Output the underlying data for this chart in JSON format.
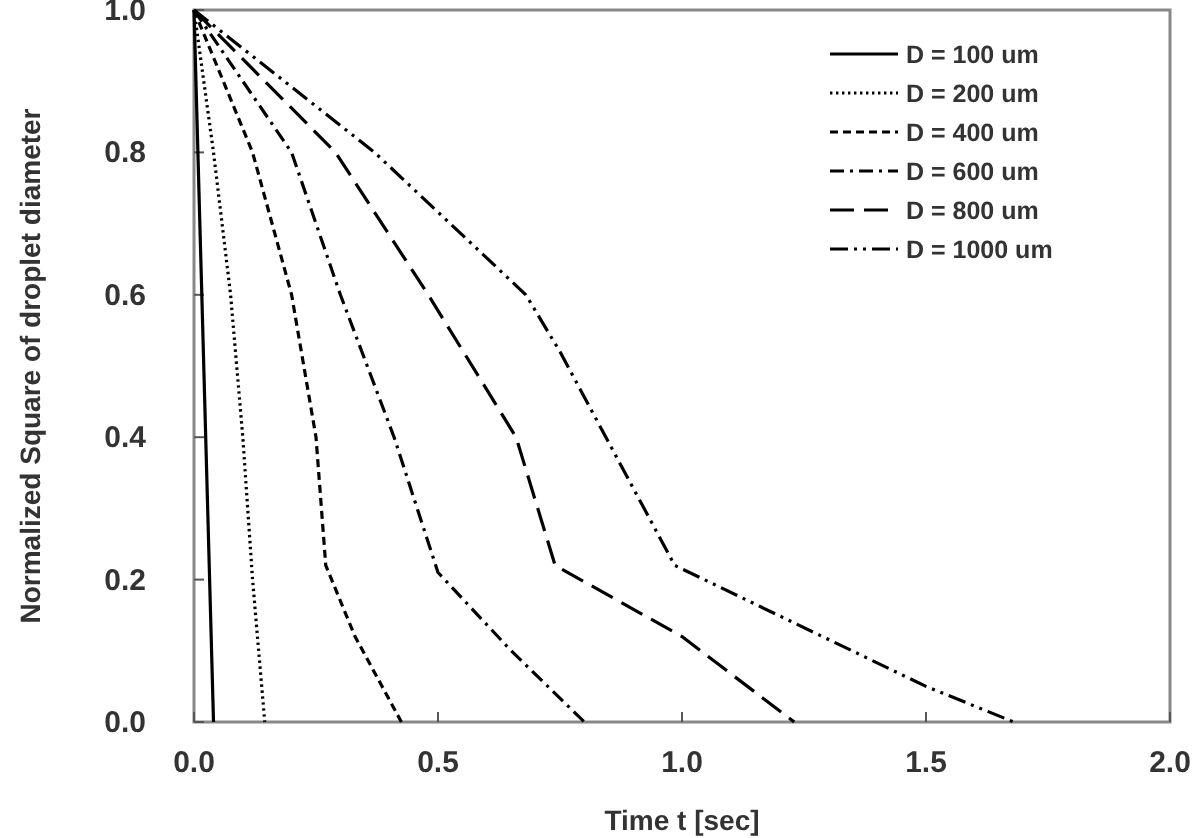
{
  "chart_data": {
    "type": "line",
    "xlabel": "Time t [sec]",
    "ylabel": "Normalized Square of droplet diameter",
    "xlim": [
      0,
      2
    ],
    "ylim": [
      0,
      1
    ],
    "xticks": [
      {
        "value": 0,
        "label": "0.0"
      },
      0.5,
      {
        "value": 1,
        "label": "1.0"
      },
      1.5,
      {
        "value": 2,
        "label": "2.0"
      }
    ],
    "yticks": [
      {
        "value": 0,
        "label": "0.0"
      },
      0.2,
      0.4,
      0.6,
      0.8,
      {
        "value": 1,
        "label": "1.0"
      }
    ],
    "grid": false,
    "legend": "top right",
    "marker": "none",
    "series": [
      {
        "name": "D = 100 um",
        "color": "#000000",
        "line_style": "solid",
        "x": [
          0,
          0.04
        ],
        "values": [
          1,
          0
        ]
      },
      {
        "name": "D = 200 um",
        "color": "#000000",
        "line_style": "dotted",
        "x": [
          0,
          0.04,
          0.075,
          0.1,
          0.12,
          0.145
        ],
        "values": [
          1,
          0.8,
          0.6,
          0.4,
          0.2,
          0
        ]
      },
      {
        "name": "D = 400 um",
        "color": "#000000",
        "line_style": "dashed",
        "x": [
          0,
          0.12,
          0.2,
          0.25,
          0.27,
          0.33,
          0.425
        ],
        "values": [
          1,
          0.8,
          0.6,
          0.4,
          0.22,
          0.12,
          0
        ]
      },
      {
        "name": "D = 600 um",
        "color": "#000000",
        "line_style": "dash-dot",
        "x": [
          0,
          0.2,
          0.3,
          0.41,
          0.5,
          0.65,
          0.8
        ],
        "values": [
          1,
          0.8,
          0.6,
          0.4,
          0.21,
          0.1,
          0
        ]
      },
      {
        "name": "D = 800 um",
        "color": "#000000",
        "line_style": "long-dash",
        "x": [
          0,
          0.29,
          0.48,
          0.66,
          0.74,
          1.0,
          1.23
        ],
        "values": [
          1,
          0.8,
          0.6,
          0.4,
          0.22,
          0.12,
          0
        ]
      },
      {
        "name": "D = 1000 um",
        "color": "#000000",
        "line_style": "dash-dot-dot",
        "x": [
          0,
          0.37,
          0.68,
          0.75,
          0.985,
          1.5,
          1.68
        ],
        "values": [
          1,
          0.8,
          0.6,
          0.52,
          0.22,
          0.05,
          0
        ]
      }
    ]
  }
}
